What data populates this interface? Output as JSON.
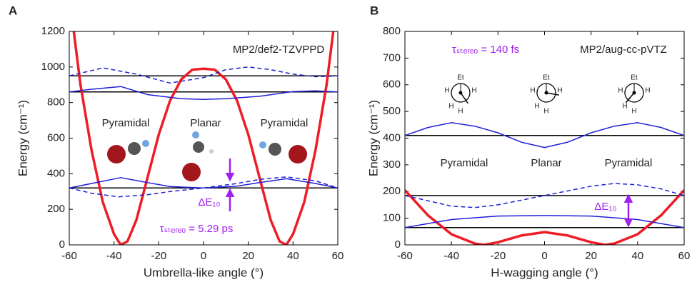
{
  "chart_data": [
    {
      "type": "line",
      "panel_label": "A",
      "x_label": "Umbrella-like angle (°)",
      "y_label": "Energy (cm⁻¹)",
      "xlim": [
        -60,
        60
      ],
      "xticks": [
        -60,
        -40,
        -20,
        0,
        20,
        40,
        60
      ],
      "ylim": [
        0,
        1200
      ],
      "yticks": [
        0,
        200,
        400,
        600,
        800,
        1000,
        1200
      ],
      "hlines": [
        320,
        860,
        950
      ],
      "hline_color": "#000000",
      "series": [
        {
          "color": "#ee1c25",
          "style": "solid",
          "width": 3.5,
          "x": [
            -58,
            -55,
            -50,
            -45,
            -40,
            -37,
            -34,
            -30,
            -25,
            -20,
            -15,
            -10,
            -5,
            0,
            5,
            10,
            15,
            20,
            25,
            30,
            34,
            37,
            40,
            45,
            50,
            55,
            58
          ],
          "values": [
            1200,
            900,
            530,
            240,
            60,
            0,
            20,
            140,
            380,
            620,
            810,
            930,
            985,
            990,
            985,
            930,
            810,
            620,
            380,
            140,
            20,
            0,
            60,
            240,
            530,
            900,
            1200
          ]
        },
        {
          "color": "#1f1fd6",
          "style": "solid",
          "width": 1.5,
          "x": [
            -60,
            -50,
            -37,
            -25,
            -15,
            0,
            15,
            25,
            37,
            50,
            60
          ],
          "values": [
            320,
            345,
            378,
            350,
            328,
            320,
            330,
            350,
            372,
            345,
            320
          ]
        },
        {
          "color": "#1f1fd6",
          "style": "dashed",
          "width": 1.5,
          "x": [
            -60,
            -50,
            -38,
            -25,
            -15,
            0,
            15,
            25,
            37,
            50,
            60
          ],
          "values": [
            320,
            290,
            270,
            282,
            300,
            320,
            345,
            368,
            382,
            360,
            320
          ]
        },
        {
          "color": "#1f1fd6",
          "style": "solid",
          "width": 1.5,
          "x": [
            -60,
            -50,
            -37,
            -25,
            -10,
            0,
            10,
            25,
            40,
            50,
            60
          ],
          "values": [
            860,
            875,
            890,
            845,
            822,
            818,
            822,
            835,
            862,
            866,
            860
          ]
        },
        {
          "color": "#1f1fd6",
          "style": "dashed",
          "width": 1.5,
          "x": [
            -60,
            -45,
            -30,
            -15,
            0,
            10,
            20,
            30,
            40,
            50,
            60
          ],
          "values": [
            950,
            995,
            960,
            910,
            940,
            985,
            1000,
            985,
            960,
            945,
            950
          ]
        }
      ],
      "annotations": [
        {
          "text": "MP2/def2-TZVPPD"
        },
        {
          "text": "Pyramidal"
        },
        {
          "text": "Planar"
        },
        {
          "text": "Pyramidal"
        },
        {
          "text": "ΔE₁₀",
          "color": "#a020f0"
        },
        {
          "text": "τₛₜₑᵣₑₒ = 5.29 ps",
          "color": "#a020f0"
        }
      ]
    },
    {
      "type": "line",
      "panel_label": "B",
      "x_label": "H-wagging angle (°)",
      "y_label": "Energy (cm⁻¹)",
      "xlim": [
        -60,
        60
      ],
      "xticks": [
        -60,
        -40,
        -20,
        0,
        20,
        40,
        60
      ],
      "ylim": [
        0,
        800
      ],
      "yticks": [
        0,
        100,
        200,
        300,
        400,
        500,
        600,
        700,
        800
      ],
      "hlines": [
        65,
        185,
        410
      ],
      "hline_color": "#000000",
      "series": [
        {
          "color": "#ee1c25",
          "style": "solid",
          "width": 3.5,
          "x": [
            -60,
            -50,
            -40,
            -30,
            -26,
            -20,
            -10,
            0,
            10,
            20,
            26,
            30,
            40,
            50,
            60
          ],
          "values": [
            205,
            110,
            40,
            5,
            0,
            10,
            35,
            48,
            35,
            10,
            0,
            5,
            40,
            110,
            205
          ]
        },
        {
          "color": "#1f1fd6",
          "style": "solid",
          "width": 1.5,
          "x": [
            -60,
            -40,
            -20,
            0,
            20,
            40,
            60
          ],
          "values": [
            65,
            95,
            108,
            110,
            108,
            95,
            65
          ]
        },
        {
          "color": "#1f1fd6",
          "style": "dashed",
          "width": 1.5,
          "x": [
            -60,
            -50,
            -40,
            -30,
            -20,
            0,
            20,
            30,
            40,
            50,
            60
          ],
          "values": [
            185,
            165,
            145,
            140,
            150,
            185,
            220,
            230,
            225,
            210,
            185
          ]
        },
        {
          "color": "#1f1fd6",
          "style": "solid",
          "width": 1.5,
          "x": [
            -60,
            -50,
            -40,
            -30,
            -20,
            -10,
            0,
            10,
            20,
            30,
            40,
            50,
            60
          ],
          "values": [
            410,
            440,
            458,
            445,
            420,
            385,
            365,
            385,
            420,
            445,
            458,
            440,
            410
          ]
        }
      ],
      "annotations": [
        {
          "text": "MP2/aug-cc-pVTZ"
        },
        {
          "text": "τₛₜₑᵣₑₒ = 140 fs",
          "color": "#a020f0"
        },
        {
          "text": "Pyramidal"
        },
        {
          "text": "Planar"
        },
        {
          "text": "Pyramidal"
        },
        {
          "text": "ΔE₁₀",
          "color": "#a020f0"
        }
      ],
      "newman_labels": [
        [
          "Et",
          "H",
          "H",
          "H",
          "H"
        ],
        [
          "Et",
          "H",
          "H",
          "H",
          "H"
        ],
        [
          "Et",
          "H",
          "H",
          "H",
          "H"
        ]
      ]
    }
  ]
}
